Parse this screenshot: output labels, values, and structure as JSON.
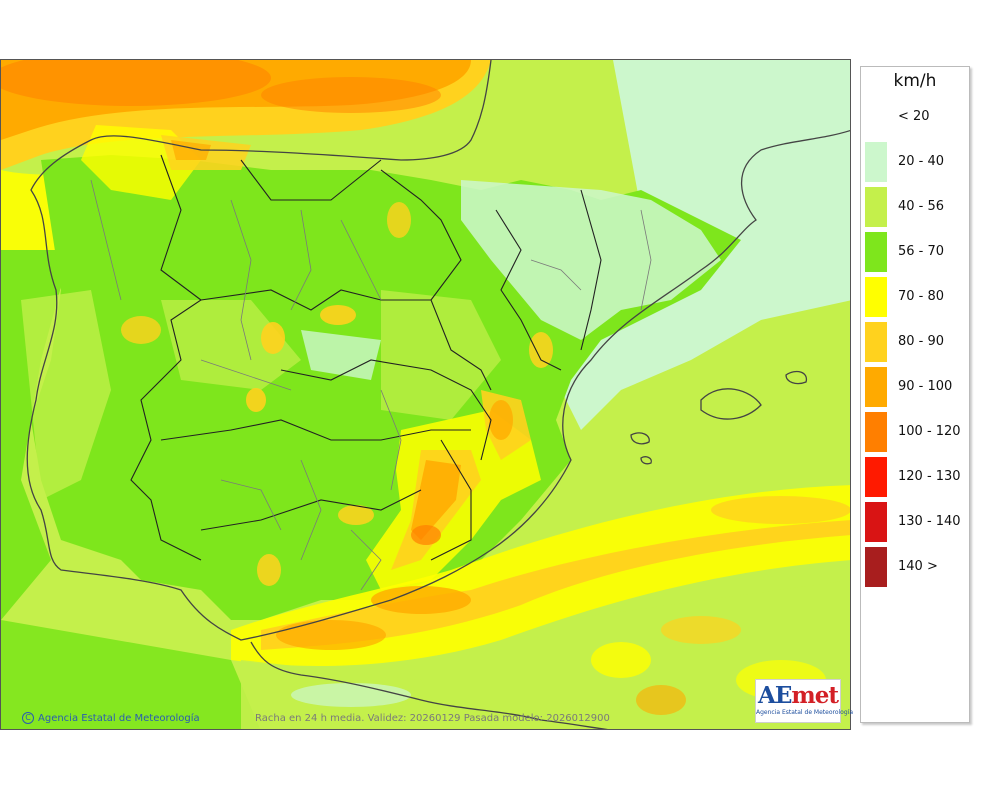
{
  "map": {
    "region": "Península Ibérica y Baleares",
    "variable": "Racha en 24 h media",
    "copyright": "Agencia Estatal de Meteorología",
    "caption": "Racha en 24 h media. Validez: 20260129 Pasada modelo: 2026012900",
    "logo_mark_a": "AE",
    "logo_mark_b": "met",
    "logo_sub": "Agencia Estatal de Meteorología"
  },
  "legend": {
    "unit": "km/h",
    "items": [
      {
        "label": "< 20",
        "color": "#ffffff"
      },
      {
        "label": "20 - 40",
        "color": "#ccf7cc"
      },
      {
        "label": "40 - 56",
        "color": "#c4f04b"
      },
      {
        "label": "56 - 70",
        "color": "#7ee61c"
      },
      {
        "label": "70 - 80",
        "color": "#ffff00"
      },
      {
        "label": "80 - 90",
        "color": "#ffd21e"
      },
      {
        "label": "90 - 100",
        "color": "#ffaa00"
      },
      {
        "label": "100 - 120",
        "color": "#ff7f00"
      },
      {
        "label": "120 - 130",
        "color": "#ff1a00"
      },
      {
        "label": "130 - 140",
        "color": "#d91414"
      },
      {
        "label": "140 >",
        "color": "#a81e1e"
      }
    ]
  }
}
